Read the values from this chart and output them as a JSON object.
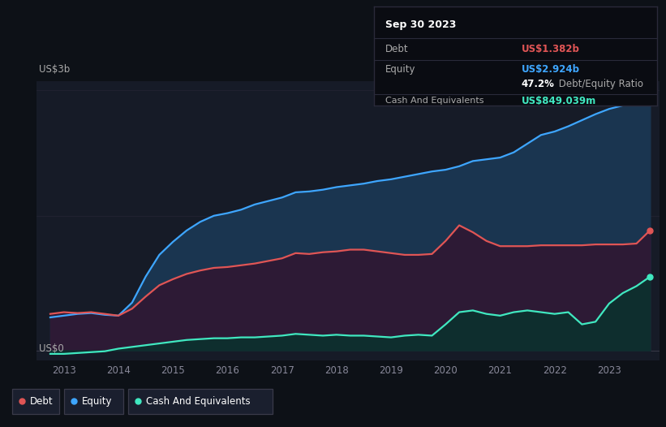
{
  "bg_color": "#0d1117",
  "plot_bg_color": "#161b27",
  "chart_bg_upper": "#0d1117",
  "debt_color": "#e05555",
  "equity_color": "#3ea6ff",
  "cash_color": "#40e8c0",
  "equity_fill": "#1a3550",
  "debt_fill": "#2d1a35",
  "cash_fill": "#0e2e2e",
  "tooltip_bg": "#0a0c12",
  "tooltip_border": "#2a2a3a",
  "tooltip_date": "Sep 30 2023",
  "tooltip_debt_label": "Debt",
  "tooltip_debt_value": "US$1.382b",
  "tooltip_equity_label": "Equity",
  "tooltip_equity_value": "US$2.924b",
  "tooltip_ratio": "47.2%",
  "tooltip_ratio_text": " Debt/Equity Ratio",
  "tooltip_cash_label": "Cash And Equivalents",
  "tooltip_cash_value": "US$849.039m",
  "legend_debt": "Debt",
  "legend_equity": "Equity",
  "legend_cash": "Cash And Equivalents",
  "title_label": "US$3b",
  "bottom_label": "US$0",
  "years": [
    2012.75,
    2013.0,
    2013.25,
    2013.5,
    2013.75,
    2014.0,
    2014.25,
    2014.5,
    2014.75,
    2015.0,
    2015.25,
    2015.5,
    2015.75,
    2016.0,
    2016.25,
    2016.5,
    2016.75,
    2017.0,
    2017.25,
    2017.5,
    2017.75,
    2018.0,
    2018.25,
    2018.5,
    2018.75,
    2019.0,
    2019.25,
    2019.5,
    2019.75,
    2020.0,
    2020.25,
    2020.5,
    2020.75,
    2021.0,
    2021.25,
    2021.5,
    2021.75,
    2022.0,
    2022.25,
    2022.5,
    2022.75,
    2023.0,
    2023.25,
    2023.5,
    2023.75
  ],
  "equity": [
    0.38,
    0.4,
    0.42,
    0.43,
    0.41,
    0.4,
    0.55,
    0.85,
    1.1,
    1.25,
    1.38,
    1.48,
    1.55,
    1.58,
    1.62,
    1.68,
    1.72,
    1.76,
    1.82,
    1.83,
    1.85,
    1.88,
    1.9,
    1.92,
    1.95,
    1.97,
    2.0,
    2.03,
    2.06,
    2.08,
    2.12,
    2.18,
    2.2,
    2.22,
    2.28,
    2.38,
    2.48,
    2.52,
    2.58,
    2.65,
    2.72,
    2.78,
    2.82,
    2.88,
    2.924
  ],
  "debt": [
    0.42,
    0.44,
    0.43,
    0.44,
    0.42,
    0.4,
    0.48,
    0.62,
    0.75,
    0.82,
    0.88,
    0.92,
    0.95,
    0.96,
    0.98,
    1.0,
    1.03,
    1.06,
    1.12,
    1.11,
    1.13,
    1.14,
    1.16,
    1.16,
    1.14,
    1.12,
    1.1,
    1.1,
    1.11,
    1.26,
    1.44,
    1.36,
    1.26,
    1.2,
    1.2,
    1.2,
    1.21,
    1.21,
    1.21,
    1.21,
    1.22,
    1.22,
    1.22,
    1.23,
    1.382
  ],
  "cash": [
    -0.04,
    -0.04,
    -0.03,
    -0.02,
    -0.01,
    0.02,
    0.04,
    0.06,
    0.08,
    0.1,
    0.12,
    0.13,
    0.14,
    0.14,
    0.15,
    0.15,
    0.16,
    0.17,
    0.19,
    0.18,
    0.17,
    0.18,
    0.17,
    0.17,
    0.16,
    0.15,
    0.17,
    0.18,
    0.17,
    0.3,
    0.44,
    0.46,
    0.42,
    0.4,
    0.44,
    0.46,
    0.44,
    0.42,
    0.44,
    0.3,
    0.33,
    0.54,
    0.66,
    0.74,
    0.849
  ],
  "ylim_min": -0.12,
  "ylim_max": 3.1,
  "xlim_min": 2012.5,
  "xlim_max": 2023.92,
  "x_ticks": [
    2013,
    2014,
    2015,
    2016,
    2017,
    2018,
    2019,
    2020,
    2021,
    2022,
    2023
  ]
}
